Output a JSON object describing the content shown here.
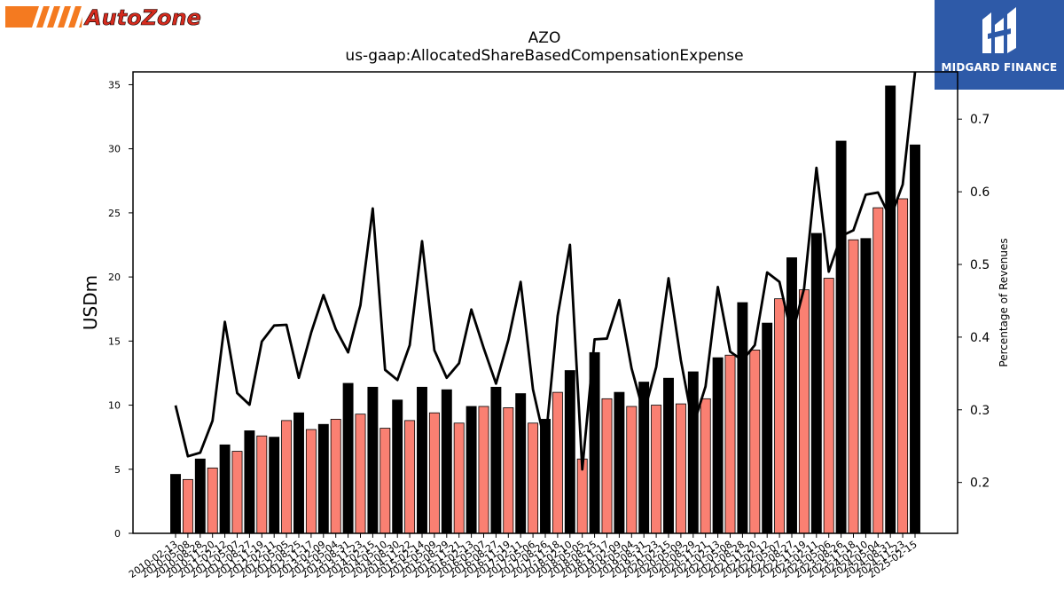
{
  "branding": {
    "left_logo_text": "AutoZone",
    "left_logo_colors": {
      "stripe": "#f47a20",
      "text": "#d52b1e"
    },
    "right_logo_text": "MIDGARD FINANCE",
    "right_logo_bg": "#2e5aa8"
  },
  "chart_data": {
    "type": "bar",
    "title": "AZO",
    "subtitle": "us-gaap:AllocatedShareBasedCompensationExpense",
    "ylabel": "USDm",
    "y2label": "Percentage of Revenues",
    "ylim": [
      0,
      36
    ],
    "y2lim": [
      0.13,
      0.765
    ],
    "yticks": [
      0,
      5,
      10,
      15,
      20,
      25,
      30,
      35
    ],
    "y2ticks": [
      0.2,
      0.3,
      0.4,
      0.5,
      0.6,
      0.7
    ],
    "grid": false,
    "bar_colors": [
      "#000000",
      "#fa8072"
    ],
    "line_color": "#000000",
    "categories": [
      "2010-02-13",
      "2010-05-08",
      "2010-08-28",
      "2010-11-20",
      "2011-02-12",
      "2011-05-07",
      "2011-08-27",
      "2011-11-19",
      "2012-02-11",
      "2012-05-05",
      "2012-08-25",
      "2012-11-17",
      "2013-02-09",
      "2013-05-04",
      "2013-08-31",
      "2013-11-23",
      "2014-02-15",
      "2014-05-10",
      "2014-08-30",
      "2014-11-22",
      "2015-02-14",
      "2015-05-09",
      "2015-08-29",
      "2015-11-21",
      "2016-02-13",
      "2016-05-07",
      "2016-08-27",
      "2016-11-19",
      "2017-02-11",
      "2017-05-06",
      "2017-08-26",
      "2017-11-18",
      "2018-02-10",
      "2018-05-05",
      "2018-08-25",
      "2018-11-17",
      "2019-02-09",
      "2019-05-04",
      "2019-08-31",
      "2019-11-23",
      "2020-02-15",
      "2020-05-09",
      "2020-08-29",
      "2020-11-21",
      "2021-02-13",
      "2021-05-08",
      "2021-08-28",
      "2021-11-20",
      "2022-02-12",
      "2022-05-07",
      "2022-08-27",
      "2022-11-19",
      "2023-02-11",
      "2023-05-06",
      "2023-08-26",
      "2023-11-18",
      "2024-02-10",
      "2024-05-04",
      "2024-08-31",
      "2024-11-23",
      "2025-02-15"
    ],
    "values": [
      4.6,
      4.2,
      5.8,
      5.1,
      6.9,
      6.4,
      8.0,
      7.6,
      7.5,
      8.8,
      9.4,
      8.1,
      8.5,
      8.9,
      11.7,
      9.3,
      11.4,
      8.2,
      10.4,
      8.8,
      11.4,
      9.4,
      11.2,
      8.6,
      9.9,
      9.9,
      11.4,
      9.8,
      10.9,
      8.6,
      8.9,
      11.0,
      12.7,
      5.8,
      14.1,
      10.5,
      11.0,
      9.9,
      11.8,
      10.0,
      12.1,
      10.1,
      12.6,
      10.5,
      13.7,
      13.9,
      18.0,
      14.3,
      16.4,
      18.3,
      21.5,
      19.0,
      23.4,
      19.9,
      30.6,
      22.9,
      23.0,
      25.4,
      34.9,
      26.1,
      30.3
    ],
    "series": [
      {
        "name": "Percentage of Revenues",
        "type": "line",
        "values": [
          0.306,
          0.236,
          0.241,
          0.285,
          0.421,
          0.323,
          0.307,
          0.394,
          0.416,
          0.417,
          0.344,
          0.406,
          0.458,
          0.411,
          0.379,
          0.444,
          0.577,
          0.355,
          0.341,
          0.389,
          0.532,
          0.382,
          0.344,
          0.364,
          0.438,
          0.385,
          0.336,
          0.396,
          0.476,
          0.328,
          0.253,
          0.429,
          0.527,
          0.218,
          0.397,
          0.398,
          0.451,
          0.357,
          0.295,
          0.359,
          0.481,
          0.368,
          0.278,
          0.332,
          0.469,
          0.38,
          0.368,
          0.389,
          0.489,
          0.476,
          0.402,
          0.467,
          0.633,
          0.49,
          0.539,
          0.547,
          0.596,
          0.599,
          0.564,
          0.61,
          0.765
        ]
      }
    ]
  }
}
